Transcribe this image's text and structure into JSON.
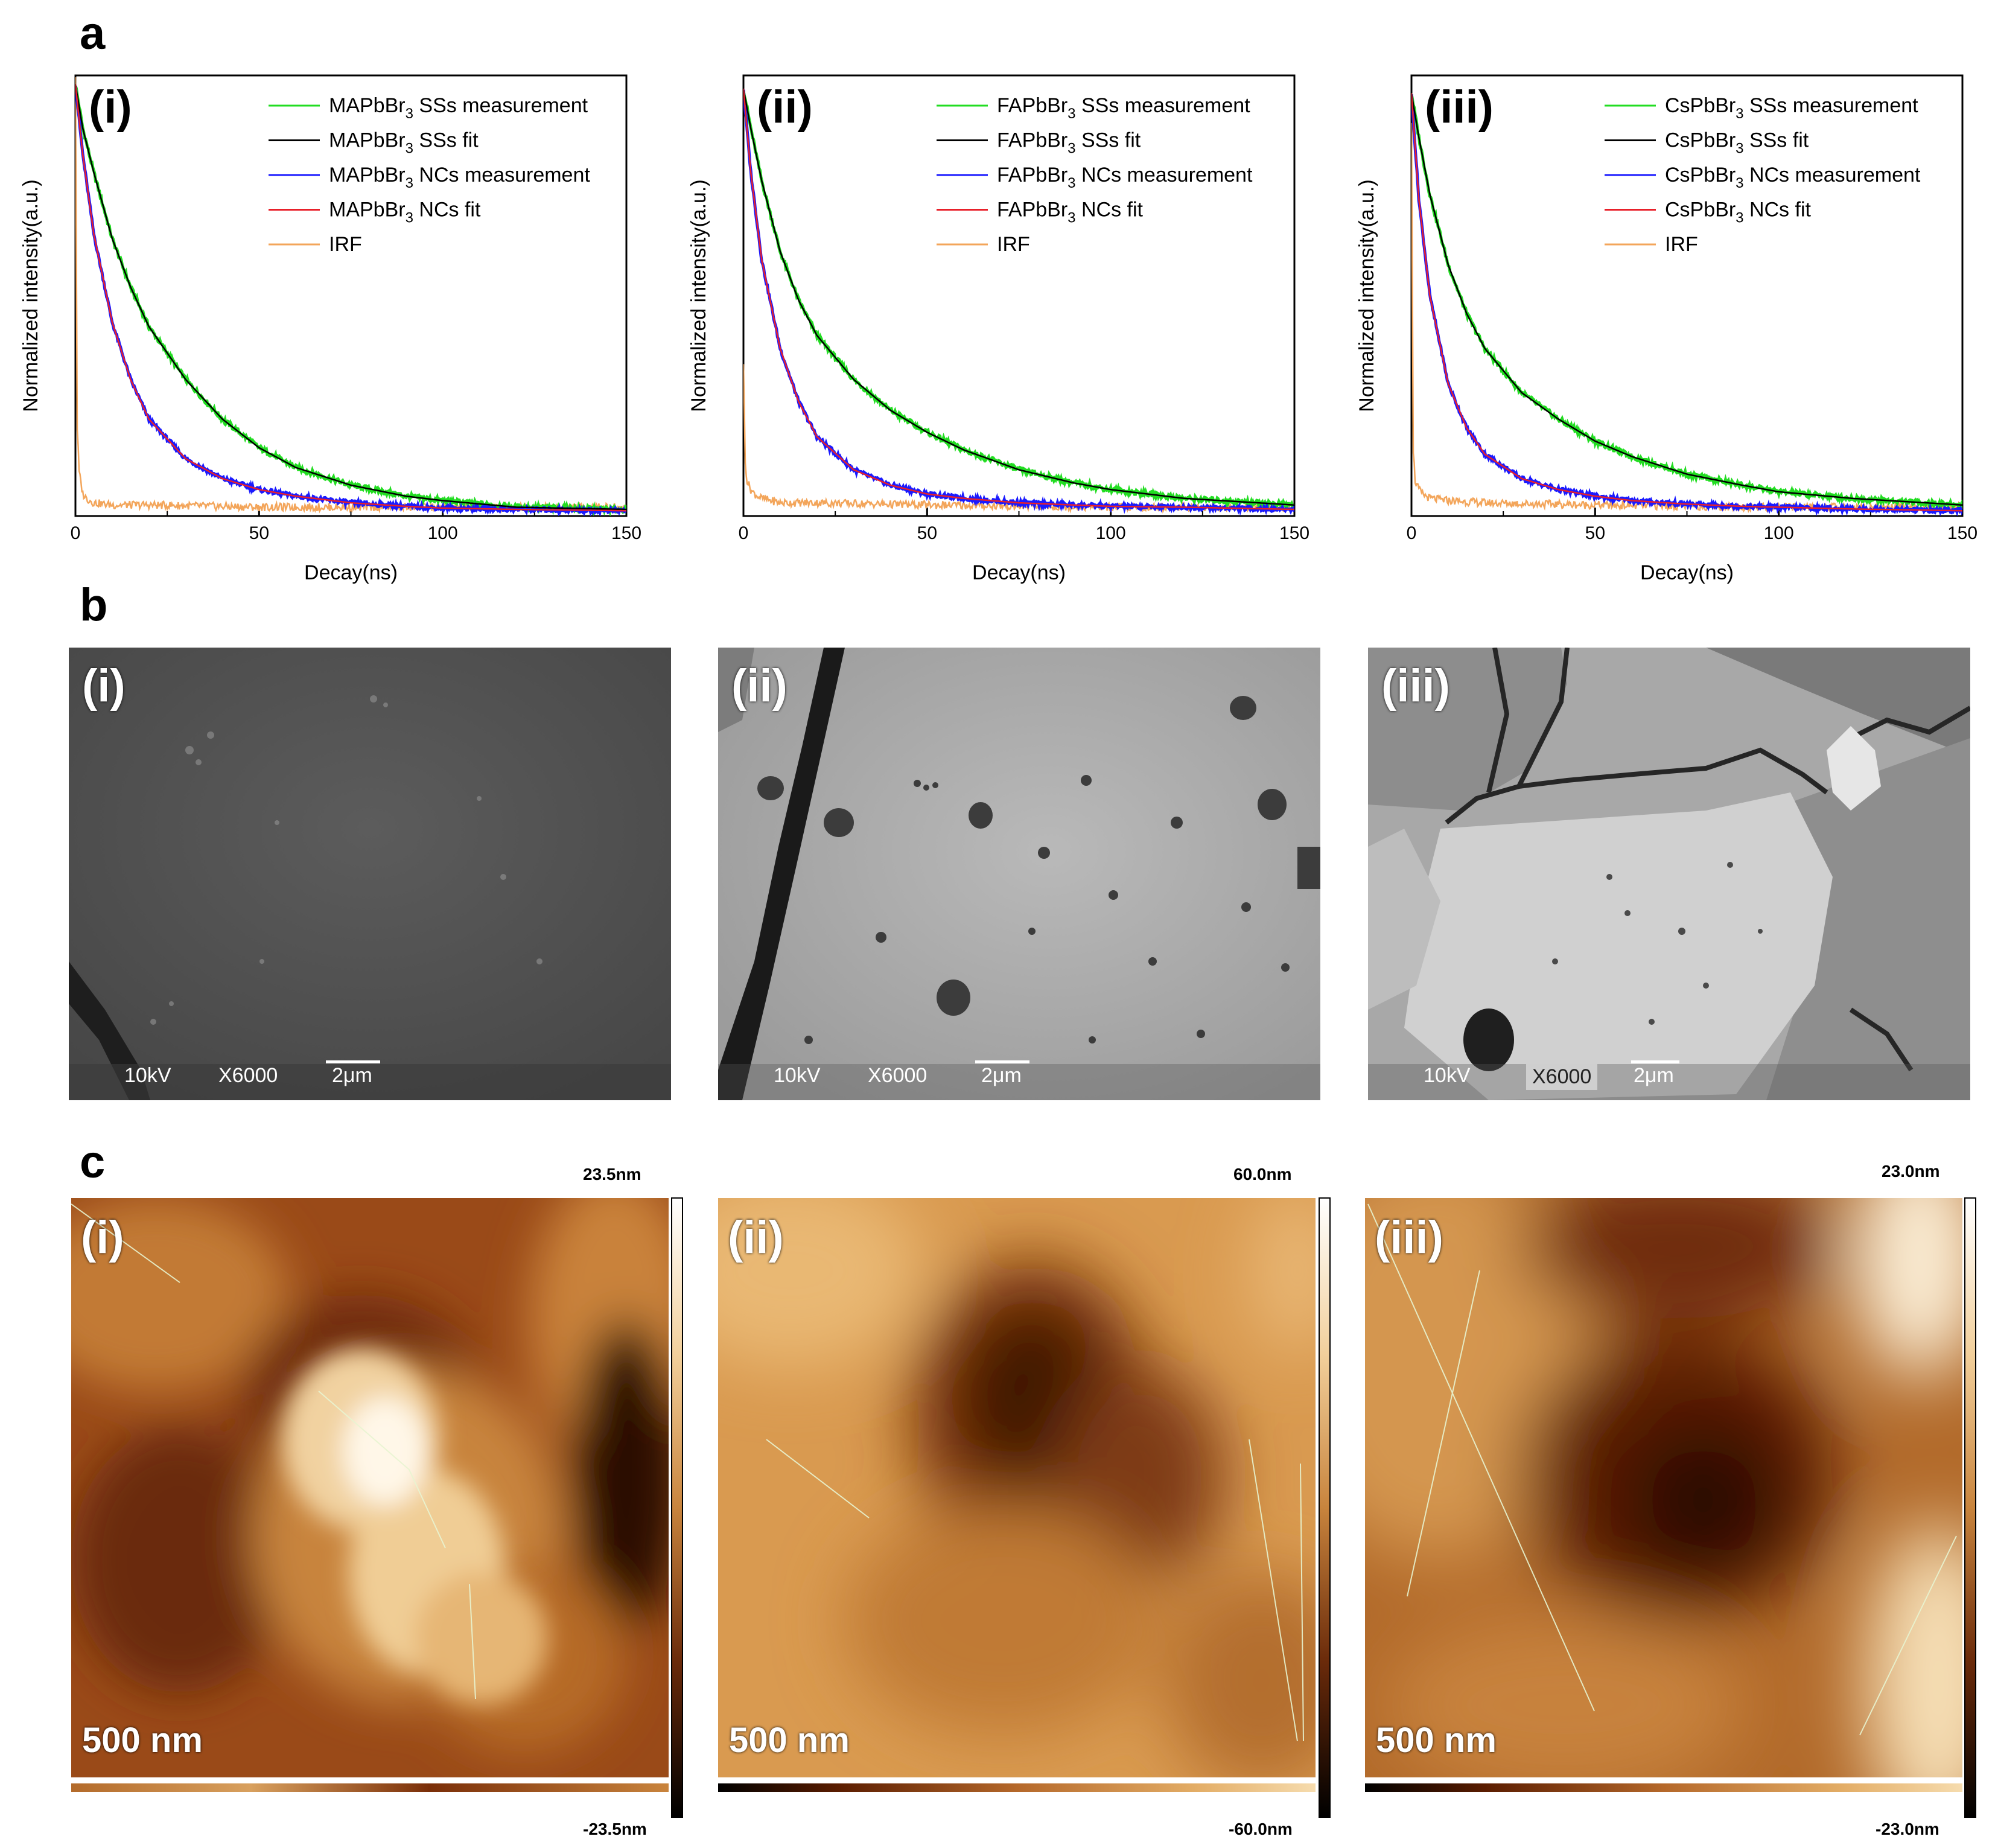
{
  "panel_letters": {
    "a": "a",
    "b": "b",
    "c": "c"
  },
  "colors": {
    "ss_measure": "#22dd22",
    "ss_fit": "#000000",
    "nc_measure": "#1a1aff",
    "nc_fit": "#e8202a",
    "irf": "#f3a55a"
  },
  "chart_data": [
    {
      "type": "line",
      "panel": "(i)",
      "xlabel": "Decay(ns)",
      "ylabel": "Normalized intensity(a.u.)",
      "xlim": [
        0,
        150
      ],
      "ylim": [
        0,
        1
      ],
      "x_ticks": [
        0,
        50,
        100,
        150
      ],
      "legend": [
        "MAPbBr3 SSs measurement",
        "MAPbBr3 SSs fit",
        "MAPbBr3 NCs measurement",
        "MAPbBr3 NCs fit",
        "IRF"
      ],
      "legend_display": [
        {
          "pre": "MAPbBr",
          "sub": "3",
          "post": " SSs measurement"
        },
        {
          "pre": "MAPbBr",
          "sub": "3",
          "post": " SSs fit"
        },
        {
          "pre": "MAPbBr",
          "sub": "3",
          "post": " NCs measurement"
        },
        {
          "pre": "MAPbBr",
          "sub": "3",
          "post": " NCs fit"
        },
        {
          "pre": "IRF",
          "sub": "",
          "post": ""
        }
      ],
      "series": [
        {
          "name": "SSs fit",
          "x": [
            0,
            2,
            5,
            10,
            15,
            20,
            30,
            40,
            50,
            60,
            75,
            90,
            100,
            120,
            150
          ],
          "values": [
            0.98,
            0.88,
            0.78,
            0.63,
            0.52,
            0.43,
            0.31,
            0.22,
            0.155,
            0.11,
            0.07,
            0.045,
            0.035,
            0.02,
            0.015
          ]
        },
        {
          "name": "NCs fit",
          "x": [
            0,
            2,
            5,
            10,
            15,
            20,
            30,
            40,
            50,
            60,
            75,
            90,
            100,
            120,
            150
          ],
          "values": [
            0.98,
            0.82,
            0.64,
            0.44,
            0.31,
            0.22,
            0.13,
            0.085,
            0.06,
            0.045,
            0.03,
            0.022,
            0.018,
            0.015,
            0.012
          ]
        },
        {
          "name": "IRF",
          "x": [
            0,
            0.5,
            1,
            2,
            3,
            5,
            10,
            20,
            50,
            100,
            150
          ],
          "values": [
            1.0,
            0.2,
            0.1,
            0.05,
            0.04,
            0.03,
            0.025,
            0.025,
            0.02,
            0.02,
            0.02
          ]
        }
      ]
    },
    {
      "type": "line",
      "panel": "(ii)",
      "xlabel": "Decay(ns)",
      "ylabel": "Normalized intensity(a.u.)",
      "xlim": [
        0,
        150
      ],
      "ylim": [
        0,
        1
      ],
      "x_ticks": [
        0,
        50,
        100,
        150
      ],
      "legend": [
        "FAPbBr3 SSs measurement",
        "FAPbBr3 SSs fit",
        "FAPbBr3 NCs measurement",
        "FAPbBr3 NCs fit",
        "IRF"
      ],
      "legend_display": [
        {
          "pre": "FAPbBr",
          "sub": "3",
          "post": " SSs measurement"
        },
        {
          "pre": "FAPbBr",
          "sub": "3",
          "post": " SSs fit"
        },
        {
          "pre": "FAPbBr",
          "sub": "3",
          "post": " NCs measurement"
        },
        {
          "pre": "FAPbBr",
          "sub": "3",
          "post": " NCs fit"
        },
        {
          "pre": "IRF",
          "sub": "",
          "post": ""
        }
      ],
      "series": [
        {
          "name": "SSs fit",
          "x": [
            0,
            2,
            5,
            10,
            15,
            20,
            30,
            40,
            50,
            60,
            75,
            90,
            100,
            120,
            150
          ],
          "values": [
            0.97,
            0.88,
            0.76,
            0.6,
            0.49,
            0.41,
            0.31,
            0.24,
            0.19,
            0.15,
            0.105,
            0.075,
            0.06,
            0.04,
            0.025
          ]
        },
        {
          "name": "NCs fit",
          "x": [
            0,
            2,
            5,
            10,
            15,
            20,
            30,
            40,
            50,
            60,
            75,
            90,
            100,
            120,
            150
          ],
          "values": [
            0.97,
            0.78,
            0.58,
            0.38,
            0.26,
            0.18,
            0.105,
            0.07,
            0.05,
            0.04,
            0.03,
            0.025,
            0.022,
            0.02,
            0.015
          ]
        },
        {
          "name": "IRF",
          "x": [
            0,
            0.5,
            1,
            2,
            3,
            5,
            10,
            20,
            50,
            100,
            150
          ],
          "values": [
            0.35,
            0.12,
            0.08,
            0.06,
            0.05,
            0.04,
            0.03,
            0.03,
            0.025,
            0.02,
            0.02
          ]
        }
      ]
    },
    {
      "type": "line",
      "panel": "(iii)",
      "xlabel": "Decay(ns)",
      "ylabel": "Normalized intensity(a.u.)",
      "xlim": [
        0,
        150
      ],
      "ylim": [
        0,
        1
      ],
      "x_ticks": [
        0,
        50,
        100,
        150
      ],
      "legend": [
        "CsPbBr3 SSs measurement",
        "CsPbBr3 SSs fit",
        "CsPbBr3 NCs measurement",
        "CsPbBr3 NCs fit",
        "IRF"
      ],
      "legend_display": [
        {
          "pre": "CsPbBr",
          "sub": "3",
          "post": " SSs measurement"
        },
        {
          "pre": "CsPbBr",
          "sub": "3",
          "post": " SSs fit"
        },
        {
          "pre": "CsPbBr",
          "sub": "3",
          "post": " NCs measurement"
        },
        {
          "pre": "CsPbBr",
          "sub": "3",
          "post": " NCs fit"
        },
        {
          "pre": "IRF",
          "sub": "",
          "post": ""
        }
      ],
      "series": [
        {
          "name": "SSs fit",
          "x": [
            0,
            2,
            5,
            10,
            15,
            20,
            30,
            40,
            50,
            60,
            75,
            90,
            100,
            120,
            150
          ],
          "values": [
            0.96,
            0.86,
            0.73,
            0.57,
            0.46,
            0.38,
            0.28,
            0.22,
            0.17,
            0.135,
            0.095,
            0.07,
            0.055,
            0.04,
            0.025
          ]
        },
        {
          "name": "NCs fit",
          "x": [
            0,
            2,
            5,
            10,
            15,
            20,
            30,
            40,
            50,
            60,
            75,
            90,
            100,
            120,
            150
          ],
          "values": [
            0.96,
            0.72,
            0.5,
            0.3,
            0.2,
            0.14,
            0.085,
            0.06,
            0.045,
            0.035,
            0.027,
            0.022,
            0.02,
            0.016,
            0.012
          ]
        },
        {
          "name": "IRF",
          "x": [
            0,
            0.5,
            1,
            2,
            3,
            5,
            10,
            20,
            50,
            100,
            150
          ],
          "values": [
            0.9,
            0.15,
            0.08,
            0.06,
            0.05,
            0.04,
            0.035,
            0.03,
            0.025,
            0.02,
            0.02
          ]
        }
      ]
    }
  ],
  "sem": [
    {
      "label": "(i)",
      "voltage": "10kV",
      "magnification": "X6000",
      "scale": "2μm"
    },
    {
      "label": "(ii)",
      "voltage": "10kV",
      "magnification": "X6000",
      "scale": "2μm"
    },
    {
      "label": "(iii)",
      "voltage": "10kV",
      "magnification": "X6000",
      "scale": "2μm"
    }
  ],
  "afm": [
    {
      "label": "(i)",
      "scale": "500 nm",
      "max": "23.5nm",
      "min": "-23.5nm"
    },
    {
      "label": "(ii)",
      "scale": "500 nm",
      "max": "60.0nm",
      "min": "-60.0nm"
    },
    {
      "label": "(iii)",
      "scale": "500 nm",
      "max": "23.0nm",
      "min": "-23.0nm"
    }
  ]
}
